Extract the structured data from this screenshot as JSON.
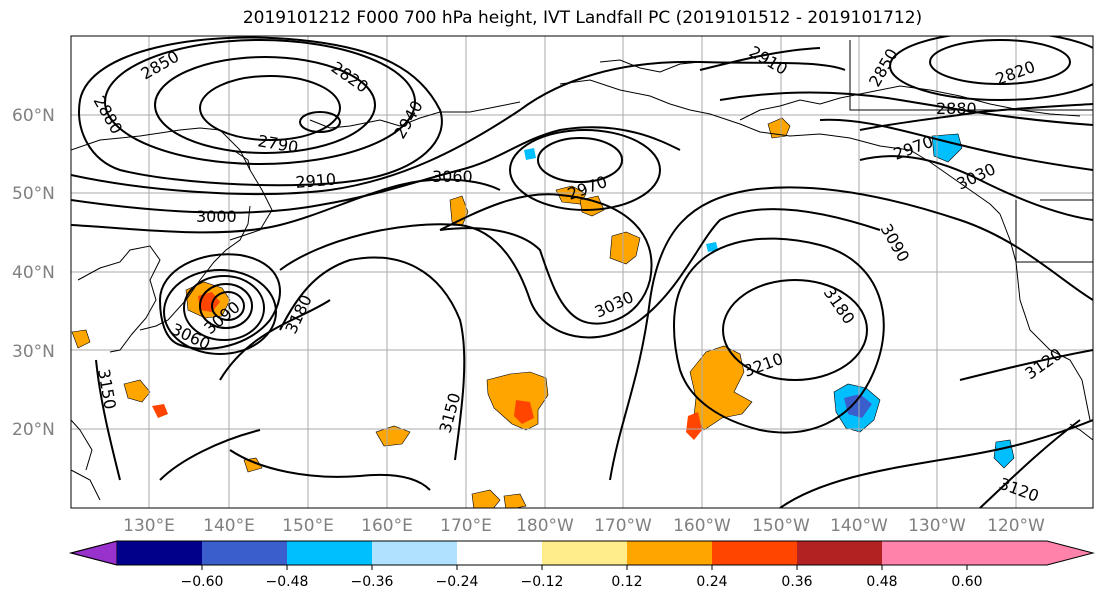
{
  "title": "2019101212 F000 700 hPa height, IVT Landfall PC (2019101512 - 2019101712)",
  "map": {
    "lon_range": [
      120,
      250
    ],
    "lat_range": [
      10,
      70
    ],
    "lat_labels": [
      "20°N",
      "30°N",
      "40°N",
      "50°N",
      "60°N"
    ],
    "lon_labels": [
      "130°E",
      "140°E",
      "150°E",
      "160°E",
      "170°E",
      "180°W",
      "170°W",
      "160°W",
      "150°W",
      "140°W",
      "130°W",
      "120°W"
    ],
    "contour_labels": [
      "2850",
      "2820",
      "2880",
      "2790",
      "2940",
      "2910",
      "3060",
      "2970",
      "3000",
      "2910",
      "2850",
      "2820",
      "2880",
      "2970",
      "3030",
      "3090",
      "3180",
      "3180",
      "3030",
      "3060",
      "3090",
      "3150",
      "3150",
      "3210",
      "3120",
      "3120"
    ]
  },
  "colorbar": {
    "ticks": [
      "−0.60",
      "−0.48",
      "−0.36",
      "−0.24",
      "−0.12",
      "0.12",
      "0.24",
      "0.36",
      "0.48",
      "0.60"
    ],
    "colors": [
      "#9932cc",
      "#00008b",
      "#3a5fcd",
      "#00bfff",
      "#b0e2ff",
      "#ffffff",
      "#ffec8b",
      "#ffa500",
      "#ff4500",
      "#b22222",
      "#ff82ab"
    ]
  }
}
